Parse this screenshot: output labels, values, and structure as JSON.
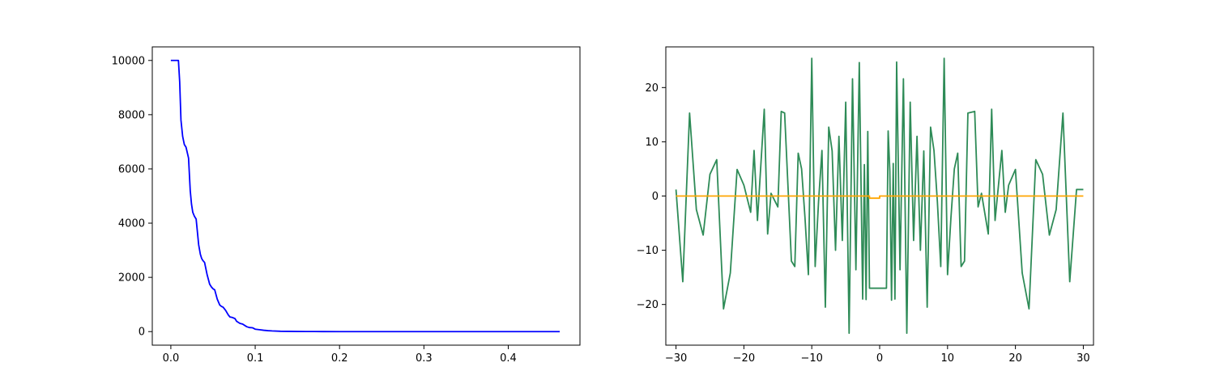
{
  "colors": {
    "left_line": "#0000ff",
    "right_line": "#2e8b57",
    "right_baseline": "#ffa500",
    "axes": "#000000",
    "background": "#ffffff"
  },
  "chart_data": [
    {
      "type": "line",
      "title": "",
      "xlabel": "",
      "ylabel": "",
      "xlim": [
        -0.022,
        0.485
      ],
      "ylim": [
        -500,
        10500
      ],
      "grid": false,
      "xticks": [
        0.0,
        0.1,
        0.2,
        0.3,
        0.4
      ],
      "xtick_labels": [
        "0.0",
        "0.1",
        "0.2",
        "0.3",
        "0.4"
      ],
      "yticks": [
        0,
        2000,
        4000,
        6000,
        8000,
        10000
      ],
      "ytick_labels": [
        "0",
        "2000",
        "4000",
        "6000",
        "8000",
        "10000"
      ],
      "series": [
        {
          "color": "#0000ff",
          "x": [
            0.0,
            0.009,
            0.0105,
            0.012,
            0.014,
            0.016,
            0.018,
            0.021,
            0.023,
            0.0245,
            0.026,
            0.028,
            0.03,
            0.033,
            0.035,
            0.0365,
            0.038,
            0.04,
            0.043,
            0.046,
            0.048,
            0.05,
            0.052,
            0.055,
            0.058,
            0.06,
            0.062,
            0.065,
            0.068,
            0.07,
            0.073,
            0.076,
            0.078,
            0.082,
            0.085,
            0.09,
            0.093,
            0.097,
            0.1,
            0.105,
            0.11,
            0.115,
            0.12,
            0.13,
            0.14,
            0.15,
            0.16,
            0.17,
            0.18,
            0.2,
            0.25,
            0.3,
            0.35,
            0.4,
            0.461
          ],
          "y": [
            10000,
            10000,
            9200,
            7800,
            7200,
            6900,
            6800,
            6400,
            5200,
            4700,
            4400,
            4250,
            4150,
            3200,
            2850,
            2700,
            2620,
            2550,
            2100,
            1750,
            1650,
            1580,
            1540,
            1200,
            980,
            930,
            900,
            780,
            620,
            540,
            520,
            480,
            380,
            300,
            280,
            180,
            150,
            140,
            90,
            70,
            50,
            35,
            25,
            12,
            8,
            5,
            3,
            2,
            1,
            0,
            0,
            0,
            0,
            0,
            0
          ]
        }
      ]
    },
    {
      "type": "line",
      "title": "",
      "xlabel": "",
      "ylabel": "",
      "xlim": [
        -31.5,
        31.5
      ],
      "ylim": [
        -27.5,
        27.5
      ],
      "grid": false,
      "xticks": [
        -30,
        -20,
        -10,
        0,
        10,
        20,
        30
      ],
      "xtick_labels": [
        "−30",
        "−20",
        "−10",
        "0",
        "10",
        "20",
        "30"
      ],
      "yticks": [
        -20,
        -10,
        0,
        10,
        20
      ],
      "ytick_labels": [
        "−20",
        "−10",
        "0",
        "10",
        "20"
      ],
      "series": [
        {
          "color": "#2e8b57",
          "x": [
            -30,
            -29,
            -28,
            -27,
            -26,
            -25,
            -24,
            -23,
            -22,
            -21,
            -20,
            -19,
            -18.5,
            -18,
            -17,
            -16.5,
            -16,
            -15,
            -14.5,
            -14,
            -13,
            -12.5,
            -12,
            -11.5,
            -11,
            -10.5,
            -10,
            -9.5,
            -9,
            -8.5,
            -8,
            -7.5,
            -7,
            -6.5,
            -6,
            -5.5,
            -5,
            -4.5,
            -4,
            -3.5,
            -3,
            -2.5,
            -2.25,
            -2,
            -1.75,
            -1.5,
            -1.25,
            -1,
            1,
            1.25,
            1.5,
            1.75,
            2,
            2.25,
            2.5,
            3,
            3.5,
            4,
            4.5,
            5,
            5.5,
            6,
            6.5,
            7,
            7.5,
            8,
            8.5,
            9,
            9.5,
            10,
            10.5,
            11,
            11.5,
            12,
            12.5,
            13,
            14,
            14.5,
            15,
            16,
            16.5,
            17,
            18,
            18.5,
            19,
            20,
            21,
            22,
            23,
            24,
            25,
            26,
            27,
            28,
            29,
            30
          ],
          "y": [
            1.2,
            -15.8,
            15.3,
            -2.5,
            -7.2,
            4.0,
            6.7,
            -20.8,
            -14.2,
            4.9,
            2.0,
            -3.0,
            8.4,
            -4.5,
            16.0,
            -7.0,
            0.5,
            -2.0,
            15.6,
            15.3,
            -12.0,
            -13.0,
            7.9,
            5.0,
            -4.0,
            -14.5,
            25.4,
            -13.0,
            -1.0,
            8.4,
            -20.5,
            12.7,
            8.3,
            -10.0,
            11.0,
            -8.2,
            17.3,
            -25.3,
            21.6,
            -13.6,
            24.6,
            -19.0,
            5.8,
            -19.1,
            11.9,
            -17.0,
            -17.0,
            -17.0,
            -17.0,
            12.0,
            4.6,
            -19.2,
            6.0,
            -19.0,
            24.7,
            -13.6,
            21.6,
            -25.3,
            17.3,
            -8.2,
            11.0,
            -10.0,
            8.3,
            -20.5,
            12.7,
            8.4,
            -1.0,
            -13.0,
            25.4,
            -14.5,
            -4.0,
            5.0,
            7.9,
            -13.0,
            -12.0,
            15.3,
            15.6,
            -2.0,
            0.5,
            -7.0,
            16.0,
            -4.5,
            8.4,
            -3.0,
            2.0,
            4.9,
            -14.2,
            -20.8,
            6.7,
            4.0,
            -7.2,
            -2.5,
            15.3,
            -15.8,
            1.2,
            1.2
          ]
        },
        {
          "color": "#ffa500",
          "x": [
            -30,
            -1.5,
            -1.5,
            0,
            0,
            30
          ],
          "y": [
            0,
            0,
            -0.4,
            -0.4,
            0,
            0
          ]
        }
      ]
    }
  ]
}
